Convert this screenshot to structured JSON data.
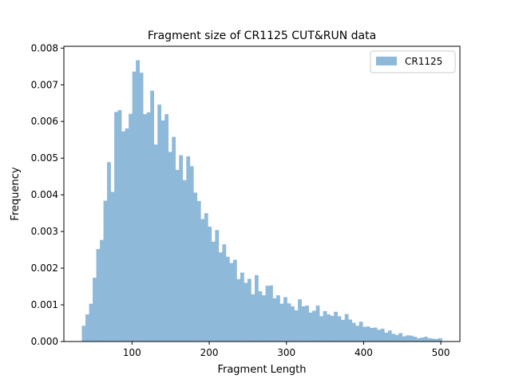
{
  "chart_data": {
    "type": "bar",
    "title": "Fragment size of CR1125 CUT&RUN data",
    "xlabel": "Fragment Length",
    "ylabel": "Frequency",
    "xlim": [
      11.7,
      524.7
    ],
    "ylim": [
      0,
      0.00805
    ],
    "xticks": [
      100,
      200,
      300,
      400,
      500
    ],
    "yticks": [
      0.0,
      0.001,
      0.002,
      0.003,
      0.004,
      0.005,
      0.006,
      0.007,
      0.008
    ],
    "ytick_labels": [
      "0.000",
      "0.001",
      "0.002",
      "0.003",
      "0.004",
      "0.005",
      "0.006",
      "0.007",
      "0.008"
    ],
    "grid": false,
    "legend_position": "upper-right",
    "series": [
      {
        "name": "CR1125",
        "color": "#8fb9d9",
        "bin_start": 35,
        "bin_width": 4.664,
        "values": [
          0.00043,
          0.00074,
          0.00103,
          0.00174,
          0.00252,
          0.00277,
          0.00384,
          0.00489,
          0.00408,
          0.00626,
          0.00631,
          0.00573,
          0.00581,
          0.00621,
          0.00736,
          0.00767,
          0.00733,
          0.0062,
          0.00625,
          0.00684,
          0.00537,
          0.00646,
          0.00603,
          0.0062,
          0.00517,
          0.00558,
          0.00468,
          0.00508,
          0.0044,
          0.00505,
          0.00478,
          0.00406,
          0.00383,
          0.00334,
          0.0035,
          0.00313,
          0.00272,
          0.00304,
          0.00243,
          0.00265,
          0.00231,
          0.00214,
          0.00223,
          0.0017,
          0.00188,
          0.0016,
          0.00171,
          0.00129,
          0.00181,
          0.00137,
          0.00126,
          0.00152,
          0.00153,
          0.00118,
          0.00126,
          0.00103,
          0.00121,
          0.00104,
          0.00096,
          0.00085,
          0.00115,
          0.00096,
          0.00098,
          0.00079,
          0.00084,
          0.00098,
          0.00069,
          0.00083,
          0.00074,
          0.0007,
          0.00081,
          0.00069,
          0.00059,
          0.00075,
          0.0006,
          0.00051,
          0.00043,
          0.00054,
          0.0004,
          0.00041,
          0.00037,
          0.00038,
          0.00032,
          0.00035,
          0.00024,
          0.0003,
          0.00021,
          0.00018,
          0.00023,
          0.00014,
          0.00017,
          0.00016,
          0.00013,
          9e-05,
          0.00011,
          0.00013,
          9e-05,
          8e-05,
          7e-05,
          9e-05
        ]
      }
    ]
  }
}
